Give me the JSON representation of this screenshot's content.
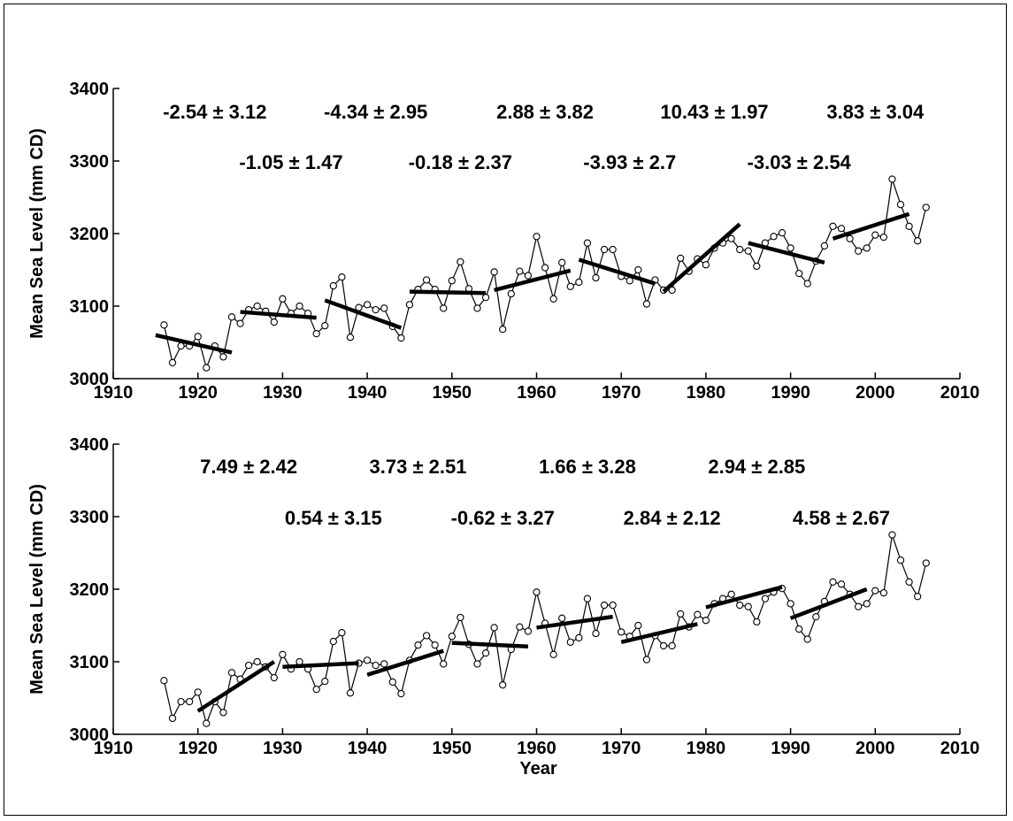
{
  "chart_data": [
    {
      "type": "line",
      "title": "",
      "xlabel": "",
      "ylabel": "Mean Sea Level (mm CD)",
      "xlim": [
        1910,
        2010
      ],
      "ylim": [
        3000,
        3400
      ],
      "xticks": [
        1910,
        1920,
        1930,
        1940,
        1950,
        1960,
        1970,
        1980,
        1990,
        2000,
        2010
      ],
      "yticks": [
        3000,
        3100,
        3200,
        3300,
        3400
      ],
      "grid": false,
      "series": [
        {
          "x": [
            1916,
            1917,
            1918,
            1919,
            1920,
            1921,
            1922,
            1923,
            1924,
            1925,
            1926,
            1927,
            1928,
            1929,
            1930,
            1931,
            1932,
            1933,
            1934,
            1935,
            1936,
            1937,
            1938,
            1939,
            1940,
            1941,
            1942,
            1943,
            1944,
            1945,
            1946,
            1947,
            1948,
            1949,
            1950,
            1951,
            1952,
            1953,
            1954,
            1955,
            1956,
            1957,
            1958,
            1959,
            1960,
            1961,
            1962,
            1963,
            1964,
            1965,
            1966,
            1967,
            1968,
            1969,
            1970,
            1971,
            1972,
            1973,
            1974,
            1975,
            1976,
            1977,
            1978,
            1979,
            1980,
            1981,
            1982,
            1983,
            1984,
            1985,
            1986,
            1987,
            1988,
            1989,
            1990,
            1991,
            1992,
            1993,
            1994,
            1995,
            1996,
            1997,
            1998,
            1999,
            2000,
            2001,
            2002,
            2003,
            2004,
            2005,
            2006
          ],
          "y": [
            3074,
            3022,
            3045,
            3045,
            3058,
            3015,
            3045,
            3030,
            3085,
            3076,
            3095,
            3100,
            3093,
            3078,
            3110,
            3090,
            3100,
            3090,
            3062,
            3073,
            3128,
            3140,
            3057,
            3098,
            3102,
            3095,
            3097,
            3072,
            3056,
            3102,
            3123,
            3136,
            3123,
            3097,
            3135,
            3161,
            3124,
            3097,
            3112,
            3147,
            3068,
            3117,
            3148,
            3142,
            3196,
            3153,
            3110,
            3160,
            3127,
            3133,
            3187,
            3139,
            3178,
            3178,
            3141,
            3135,
            3150,
            3103,
            3136,
            3122,
            3122,
            3166,
            3148,
            3165,
            3157,
            3180,
            3187,
            3193,
            3178,
            3176,
            3155,
            3187,
            3196,
            3201,
            3180,
            3145,
            3131,
            3162,
            3183,
            3210,
            3207,
            3193,
            3176,
            3180,
            3198,
            3195,
            3275,
            3240,
            3210,
            3190,
            3236
          ]
        }
      ],
      "trend_segments": [
        {
          "x": [
            1915,
            1924
          ],
          "y": [
            3060,
            3036
          ]
        },
        {
          "x": [
            1925,
            1934
          ],
          "y": [
            3092,
            3084
          ]
        },
        {
          "x": [
            1935,
            1944
          ],
          "y": [
            3108,
            3070
          ]
        },
        {
          "x": [
            1945,
            1954
          ],
          "y": [
            3120,
            3118
          ]
        },
        {
          "x": [
            1955,
            1964
          ],
          "y": [
            3122,
            3149
          ]
        },
        {
          "x": [
            1965,
            1974
          ],
          "y": [
            3164,
            3131
          ]
        },
        {
          "x": [
            1975,
            1984
          ],
          "y": [
            3120,
            3213
          ]
        },
        {
          "x": [
            1985,
            1994
          ],
          "y": [
            3187,
            3160
          ]
        },
        {
          "x": [
            1995,
            2004
          ],
          "y": [
            3193,
            3227
          ]
        }
      ],
      "annotations": [
        {
          "text": "-2.54 ± 3.12",
          "row": 1,
          "x": 1922
        },
        {
          "text": "-4.34 ± 2.95",
          "row": 1,
          "x": 1941
        },
        {
          "text": "2.88 ± 3.82",
          "row": 1,
          "x": 1961
        },
        {
          "text": "10.43 ± 1.97",
          "row": 1,
          "x": 1981
        },
        {
          "text": "3.83 ± 3.04",
          "row": 1,
          "x": 2000
        },
        {
          "text": "-1.05 ± 1.47",
          "row": 2,
          "x": 1931
        },
        {
          "text": "-0.18 ± 2.37",
          "row": 2,
          "x": 1951
        },
        {
          "text": "-3.93 ± 2.7",
          "row": 2,
          "x": 1971
        },
        {
          "text": "-3.03 ± 2.54",
          "row": 2,
          "x": 1991
        }
      ]
    },
    {
      "type": "line",
      "title": "",
      "xlabel": "Year",
      "ylabel": "Mean Sea Level (mm CD)",
      "xlim": [
        1910,
        2010
      ],
      "ylim": [
        3000,
        3400
      ],
      "xticks": [
        1910,
        1920,
        1930,
        1940,
        1950,
        1960,
        1970,
        1980,
        1990,
        2000,
        2010
      ],
      "yticks": [
        3000,
        3100,
        3200,
        3300,
        3400
      ],
      "grid": false,
      "series": [
        {
          "x": [
            1916,
            1917,
            1918,
            1919,
            1920,
            1921,
            1922,
            1923,
            1924,
            1925,
            1926,
            1927,
            1928,
            1929,
            1930,
            1931,
            1932,
            1933,
            1934,
            1935,
            1936,
            1937,
            1938,
            1939,
            1940,
            1941,
            1942,
            1943,
            1944,
            1945,
            1946,
            1947,
            1948,
            1949,
            1950,
            1951,
            1952,
            1953,
            1954,
            1955,
            1956,
            1957,
            1958,
            1959,
            1960,
            1961,
            1962,
            1963,
            1964,
            1965,
            1966,
            1967,
            1968,
            1969,
            1970,
            1971,
            1972,
            1973,
            1974,
            1975,
            1976,
            1977,
            1978,
            1979,
            1980,
            1981,
            1982,
            1983,
            1984,
            1985,
            1986,
            1987,
            1988,
            1989,
            1990,
            1991,
            1992,
            1993,
            1994,
            1995,
            1996,
            1997,
            1998,
            1999,
            2000,
            2001,
            2002,
            2003,
            2004,
            2005,
            2006
          ],
          "y": [
            3074,
            3022,
            3045,
            3045,
            3058,
            3015,
            3045,
            3030,
            3085,
            3076,
            3095,
            3100,
            3093,
            3078,
            3110,
            3090,
            3100,
            3090,
            3062,
            3073,
            3128,
            3140,
            3057,
            3098,
            3102,
            3095,
            3097,
            3072,
            3056,
            3102,
            3123,
            3136,
            3123,
            3097,
            3135,
            3161,
            3124,
            3097,
            3112,
            3147,
            3068,
            3117,
            3148,
            3142,
            3196,
            3153,
            3110,
            3160,
            3127,
            3133,
            3187,
            3139,
            3178,
            3178,
            3141,
            3135,
            3150,
            3103,
            3136,
            3122,
            3122,
            3166,
            3148,
            3165,
            3157,
            3180,
            3187,
            3193,
            3178,
            3176,
            3155,
            3187,
            3196,
            3201,
            3180,
            3145,
            3131,
            3162,
            3183,
            3210,
            3207,
            3193,
            3176,
            3180,
            3198,
            3195,
            3275,
            3240,
            3210,
            3190,
            3236
          ]
        }
      ],
      "trend_segments": [
        {
          "x": [
            1920,
            1929
          ],
          "y": [
            3032,
            3100
          ]
        },
        {
          "x": [
            1930,
            1939
          ],
          "y": [
            3093,
            3098
          ]
        },
        {
          "x": [
            1940,
            1949
          ],
          "y": [
            3082,
            3115
          ]
        },
        {
          "x": [
            1950,
            1959
          ],
          "y": [
            3126,
            3121
          ]
        },
        {
          "x": [
            1960,
            1969
          ],
          "y": [
            3147,
            3162
          ]
        },
        {
          "x": [
            1970,
            1979
          ],
          "y": [
            3127,
            3152
          ]
        },
        {
          "x": [
            1980,
            1989
          ],
          "y": [
            3175,
            3203
          ]
        },
        {
          "x": [
            1990,
            1999
          ],
          "y": [
            3160,
            3200
          ]
        }
      ],
      "annotations": [
        {
          "text": "7.49 ± 2.42",
          "row": 1,
          "x": 1926
        },
        {
          "text": "3.73 ± 2.51",
          "row": 1,
          "x": 1946
        },
        {
          "text": "1.66 ± 3.28",
          "row": 1,
          "x": 1966
        },
        {
          "text": "2.94 ± 2.85",
          "row": 1,
          "x": 1986
        },
        {
          "text": "0.54 ± 3.15",
          "row": 2,
          "x": 1936
        },
        {
          "text": "-0.62 ± 3.27",
          "row": 2,
          "x": 1956
        },
        {
          "text": "2.84 ± 2.12",
          "row": 2,
          "x": 1976
        },
        {
          "text": "4.58 ± 2.67",
          "row": 2,
          "x": 1996
        }
      ]
    }
  ]
}
